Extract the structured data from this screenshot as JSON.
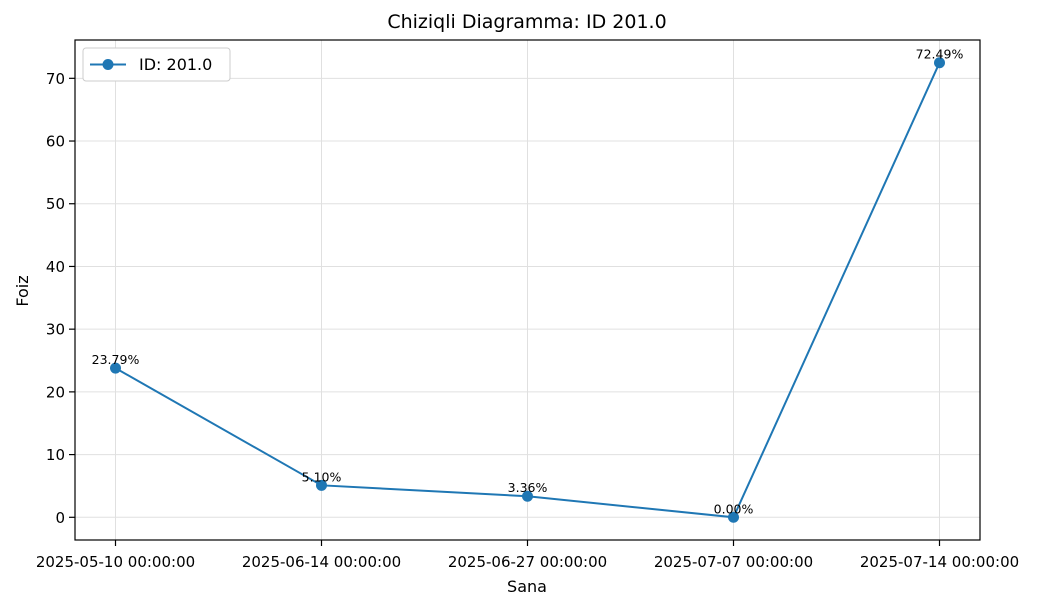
{
  "chart_data": {
    "type": "line",
    "title": "Chiziqli Diagramma: ID 201.0",
    "xlabel": "Sana",
    "ylabel": "Foiz",
    "categories": [
      "2025-05-10 00:00:00",
      "2025-06-14 00:00:00",
      "2025-06-27 00:00:00",
      "2025-07-07 00:00:00",
      "2025-07-14 00:00:00"
    ],
    "series": [
      {
        "name": "ID: 201.0",
        "values": [
          23.79,
          5.1,
          3.36,
          0.0,
          72.49
        ],
        "labels": [
          "23.79%",
          "5.10%",
          "3.36%",
          "0.00%",
          "72.49%"
        ],
        "color": "#1f77b4"
      }
    ],
    "ylim": [
      -3.62,
      76.11
    ],
    "yticks": [
      0,
      10,
      20,
      30,
      40,
      50,
      60,
      70
    ],
    "grid": true,
    "legend_position": "top-left",
    "axis_color": "#000000",
    "grid_color": "#e0e0e0"
  }
}
